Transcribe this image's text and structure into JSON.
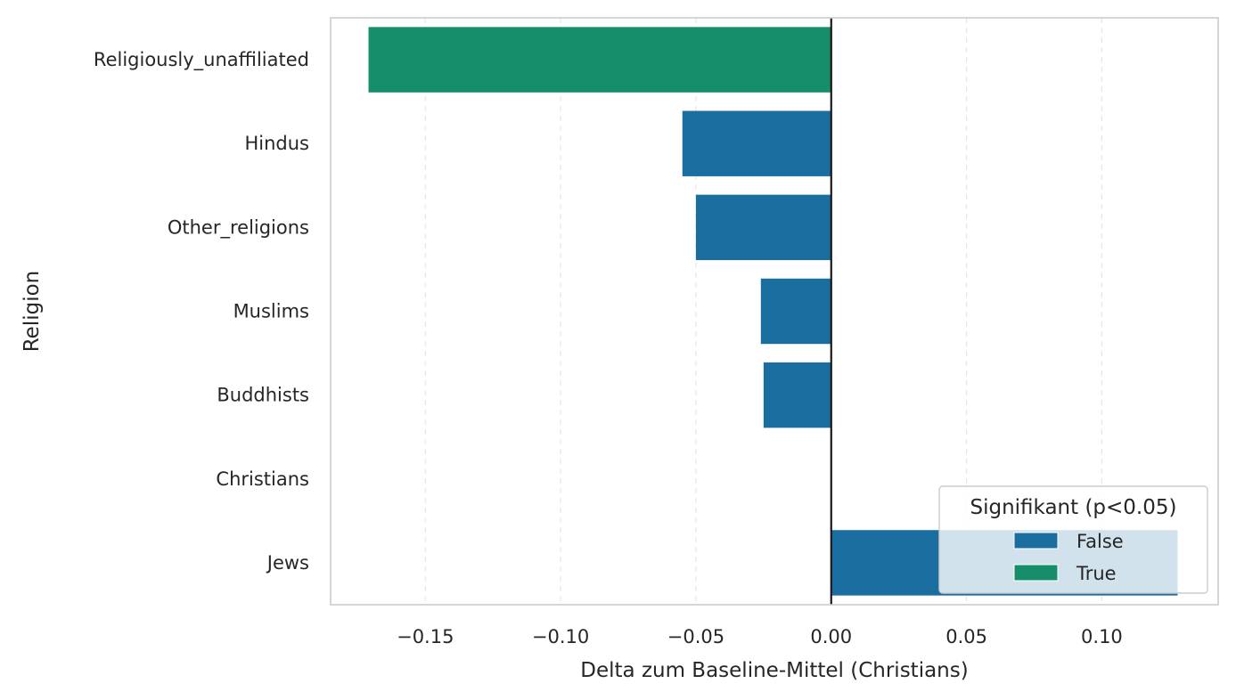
{
  "chart_data": {
    "type": "bar",
    "orientation": "horizontal",
    "title": "",
    "xlabel": "Delta zum Baseline-Mittel (Christians)",
    "ylabel": "Religion",
    "xlim": [
      -0.185,
      0.143
    ],
    "xticks": [
      -0.15,
      -0.1,
      -0.05,
      0.0,
      0.05,
      0.1
    ],
    "xtick_labels": [
      "−0.15",
      "−0.10",
      "−0.05",
      "0.00",
      "0.05",
      "0.10"
    ],
    "grid": "x-dashed",
    "categories": [
      "Religiously_unaffiliated",
      "Hindus",
      "Other_religions",
      "Muslims",
      "Buddhists",
      "Christians",
      "Jews"
    ],
    "values": [
      -0.171,
      -0.055,
      -0.05,
      -0.026,
      -0.025,
      0.0,
      0.128
    ],
    "significant": [
      true,
      false,
      false,
      false,
      false,
      false,
      false
    ],
    "legend": {
      "title": "Signifikant (p<0.05)",
      "placement": "lower-right",
      "entries": [
        {
          "label": "False",
          "color": "#1a6e9f"
        },
        {
          "label": "True",
          "color": "#178e6a"
        }
      ]
    },
    "colors": {
      "False": "#1a6e9f",
      "True": "#178e6a"
    }
  }
}
